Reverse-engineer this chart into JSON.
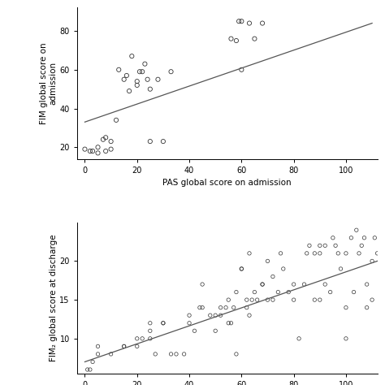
{
  "plot1": {
    "xlabel": "PAS global score on admission",
    "ylabel": "FIM global score on\nadmission",
    "xlim": [
      -3,
      112
    ],
    "ylim": [
      14,
      92
    ],
    "xticks": [
      0,
      20,
      40,
      60,
      80,
      100
    ],
    "yticks": [
      20,
      40,
      60,
      80
    ],
    "scatter_x": [
      0,
      2,
      3,
      5,
      5,
      7,
      8,
      8,
      10,
      10,
      12,
      13,
      15,
      16,
      17,
      18,
      20,
      20,
      21,
      22,
      23,
      24,
      25,
      25,
      28,
      30,
      33,
      56,
      58,
      59,
      60,
      60,
      63,
      65,
      68
    ],
    "scatter_y": [
      19,
      18,
      18,
      17,
      20,
      24,
      18,
      25,
      23,
      19,
      34,
      60,
      55,
      57,
      49,
      67,
      54,
      52,
      59,
      59,
      63,
      55,
      50,
      23,
      55,
      23,
      59,
      76,
      75,
      85,
      60,
      85,
      84,
      76,
      84
    ],
    "line_x": [
      0,
      110
    ],
    "line_y": [
      33,
      84
    ],
    "line_color": "#555555",
    "marker_color": "none",
    "marker_edge_color": "#333333",
    "marker_size": 14,
    "marker_lw": 0.6,
    "bg_color": "#ffffff"
  },
  "plot2": {
    "xlabel": "",
    "ylabel": "FIM₂ global score at discharge",
    "xlim": [
      -3,
      112
    ],
    "ylim": [
      5.5,
      25
    ],
    "xticks": [
      0,
      20,
      40,
      60,
      80,
      100
    ],
    "yticks": [
      10,
      15,
      20
    ],
    "scatter_x": [
      1,
      2,
      3,
      5,
      5,
      10,
      15,
      15,
      20,
      20,
      22,
      25,
      25,
      25,
      27,
      30,
      30,
      33,
      35,
      38,
      40,
      40,
      42,
      44,
      45,
      45,
      48,
      50,
      50,
      52,
      52,
      54,
      55,
      55,
      56,
      57,
      58,
      58,
      60,
      60,
      62,
      62,
      63,
      63,
      64,
      65,
      66,
      68,
      68,
      70,
      70,
      72,
      72,
      74,
      75,
      76,
      78,
      80,
      80,
      82,
      84,
      85,
      86,
      88,
      88,
      90,
      90,
      90,
      92,
      92,
      94,
      95,
      96,
      97,
      98,
      100,
      100,
      100,
      102,
      103,
      104,
      105,
      106,
      107,
      108,
      108,
      110,
      110,
      111,
      112
    ],
    "scatter_y": [
      6,
      6,
      7,
      8,
      9,
      8,
      9,
      9,
      9,
      10,
      10,
      10,
      11,
      12,
      8,
      12,
      12,
      8,
      8,
      8,
      12,
      13,
      11,
      14,
      14,
      17,
      13,
      11,
      13,
      13,
      14,
      14,
      15,
      12,
      12,
      14,
      16,
      8,
      19,
      19,
      15,
      14,
      13,
      21,
      15,
      16,
      15,
      17,
      17,
      15,
      20,
      18,
      15,
      16,
      21,
      19,
      16,
      17,
      15,
      10,
      17,
      21,
      22,
      15,
      21,
      15,
      21,
      22,
      22,
      17,
      16,
      23,
      22,
      21,
      19,
      14,
      10,
      21,
      23,
      16,
      24,
      21,
      22,
      23,
      14,
      17,
      20,
      15,
      23,
      21
    ],
    "line_x": [
      0,
      112
    ],
    "line_y": [
      7.0,
      20.0
    ],
    "line_color": "#555555",
    "marker_color": "none",
    "marker_edge_color": "#333333",
    "marker_size": 10,
    "marker_lw": 0.5,
    "bg_color": "#ffffff"
  },
  "fig_bg": "#ffffff"
}
